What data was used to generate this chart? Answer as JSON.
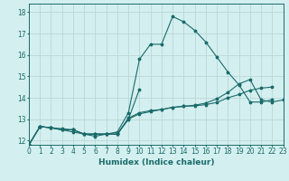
{
  "title": "",
  "xlabel": "Humidex (Indice chaleur)",
  "background_color": "#d4efef",
  "grid_color": "#b8d8d8",
  "line_color": "#1a6b6b",
  "xlim": [
    0,
    23
  ],
  "ylim": [
    11.8,
    18.4
  ],
  "yticks": [
    12,
    13,
    14,
    15,
    16,
    17,
    18
  ],
  "xticks": [
    0,
    1,
    2,
    3,
    4,
    5,
    6,
    7,
    8,
    9,
    10,
    11,
    12,
    13,
    14,
    15,
    16,
    17,
    18,
    19,
    20,
    21,
    22,
    23
  ],
  "series": [
    {
      "x": [
        0,
        1,
        2,
        3,
        4,
        5,
        6,
        7,
        8,
        9,
        10,
        11,
        12,
        13,
        14,
        15,
        16,
        17,
        18,
        19,
        20,
        21,
        22
      ],
      "y": [
        11.8,
        12.65,
        12.6,
        12.5,
        12.4,
        12.3,
        12.3,
        12.3,
        12.4,
        13.3,
        15.8,
        16.5,
        16.5,
        17.8,
        17.55,
        17.15,
        16.6,
        15.9,
        15.2,
        14.6,
        13.8,
        13.8,
        13.9
      ]
    },
    {
      "x": [
        0,
        1,
        2,
        3,
        4,
        5,
        6,
        7,
        8,
        9,
        10
      ],
      "y": [
        11.8,
        12.65,
        12.6,
        12.5,
        12.5,
        12.3,
        12.3,
        12.3,
        12.3,
        13.0,
        14.4
      ]
    },
    {
      "x": [
        0,
        1,
        2,
        3,
        4,
        5,
        6,
        7,
        8,
        9,
        10,
        11,
        12,
        13,
        14,
        15,
        16,
        17,
        18,
        19,
        20,
        21,
        22
      ],
      "y": [
        11.8,
        12.65,
        12.6,
        12.5,
        12.5,
        12.3,
        12.2,
        12.3,
        12.3,
        13.05,
        13.3,
        13.4,
        13.45,
        13.55,
        13.6,
        13.62,
        13.68,
        13.78,
        14.0,
        14.15,
        14.35,
        14.45,
        14.5
      ]
    },
    {
      "x": [
        0,
        1,
        2,
        3,
        4,
        5,
        6,
        7,
        8,
        9,
        10,
        11,
        12,
        13,
        14,
        15,
        16,
        17,
        18,
        19,
        20,
        21,
        22,
        23
      ],
      "y": [
        11.8,
        12.65,
        12.6,
        12.55,
        12.5,
        12.3,
        12.3,
        12.3,
        12.3,
        13.0,
        13.25,
        13.35,
        13.45,
        13.55,
        13.6,
        13.65,
        13.75,
        13.95,
        14.25,
        14.65,
        14.85,
        13.9,
        13.8,
        13.9
      ]
    }
  ]
}
